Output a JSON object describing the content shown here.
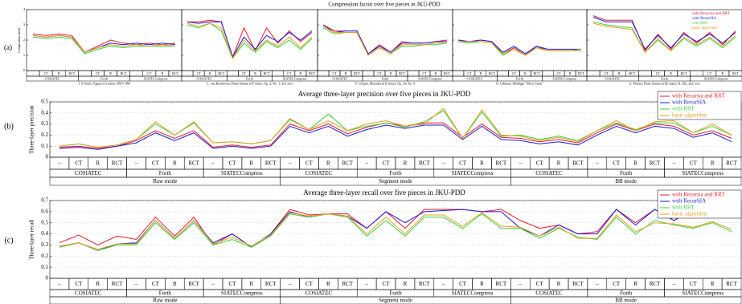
{
  "chart_data": [
    {
      "type": "line",
      "label": "(a)",
      "title": "Compression factor over five pieces in JKU-PDD",
      "ylabel": "Compression factor",
      "ylim": [
        0,
        4
      ],
      "yticks": [
        0,
        1,
        2,
        3,
        4
      ],
      "grid": false,
      "legend": "upper right",
      "variants": [
        "–",
        "CT",
        "R",
        "RCT"
      ],
      "groups": [
        "COSIATEC",
        "Forth",
        "SIATECCompress"
      ],
      "series": [
        {
          "name": "with Recursia and RRT",
          "color": "#e8192c"
        },
        {
          "name": "with RecurSIA",
          "color": "#1a1ad6"
        },
        {
          "name": "with RRT",
          "color": "#3ed13e"
        },
        {
          "name": "basic algorithm",
          "color": "#e8a020"
        }
      ],
      "pieces": [
        {
          "name": "J. S. Bach, Fugue in A minor, BWV 889",
          "series": [
            {
              "values": [
                2.4,
                2.3,
                2.4,
                2.3,
                1.2,
                1.6,
                2.0,
                1.8,
                1.7,
                1.8,
                1.7,
                1.8
              ]
            },
            {
              "values": [
                2.3,
                2.2,
                2.3,
                2.2,
                1.2,
                1.5,
                1.8,
                1.7,
                1.8,
                1.7,
                1.8,
                1.7
              ]
            },
            {
              "values": [
                2.2,
                2.1,
                2.2,
                2.1,
                1.1,
                1.4,
                1.6,
                1.5,
                1.6,
                1.6,
                1.6,
                1.6
              ]
            },
            {
              "values": [
                2.3,
                2.2,
                2.3,
                2.2,
                1.2,
                1.5,
                1.7,
                1.6,
                1.7,
                1.6,
                1.7,
                1.6
              ]
            }
          ]
        },
        {
          "name": "L. van Beethoven, Piano Sonata in F minor, Op. 2, No. 1, 3rd. mvt",
          "series": [
            {
              "values": [
                3.2,
                3.2,
                3.3,
                3.2,
                0.9,
                2.8,
                1.3,
                2.8,
                1.8,
                2.6,
                1.9,
                2.5
              ]
            },
            {
              "values": [
                3.2,
                3.1,
                3.2,
                3.2,
                0.9,
                2.2,
                1.4,
                2.3,
                1.9,
                2.5,
                2.0,
                2.6
              ]
            },
            {
              "values": [
                3.0,
                2.8,
                3.1,
                2.6,
                0.8,
                1.8,
                1.2,
                1.9,
                1.5,
                2.0,
                1.4,
                2.1
              ]
            },
            {
              "values": [
                3.1,
                2.9,
                3.1,
                2.8,
                0.8,
                2.0,
                1.3,
                2.0,
                1.6,
                2.2,
                1.5,
                2.2
              ]
            }
          ]
        },
        {
          "name": "F. Chopin, Mazurka in B minor, Op. 24, No. 4",
          "series": [
            {
              "values": [
                3.0,
                2.6,
                2.6,
                2.6,
                1.1,
                1.7,
                1.2,
                1.9,
                1.8,
                1.8,
                1.9,
                2.0
              ]
            },
            {
              "values": [
                3.0,
                2.5,
                2.6,
                2.6,
                1.1,
                1.6,
                1.2,
                1.8,
                1.8,
                1.8,
                1.9,
                1.9
              ]
            },
            {
              "values": [
                2.8,
                2.4,
                2.5,
                2.5,
                1.0,
                1.5,
                1.1,
                1.6,
                1.6,
                1.7,
                1.7,
                1.8
              ]
            },
            {
              "values": [
                2.9,
                2.5,
                2.5,
                2.5,
                1.0,
                1.5,
                1.1,
                1.7,
                1.7,
                1.7,
                1.8,
                1.8
              ]
            }
          ]
        },
        {
          "name": "O. Gibbons, Madrigal \"Silver Swan\"",
          "series": [
            {
              "values": [
                2.0,
                1.9,
                2.0,
                1.9,
                1.1,
                1.5,
                1.0,
                1.6,
                1.3,
                1.3,
                1.3,
                1.4
              ]
            },
            {
              "values": [
                2.0,
                1.9,
                2.0,
                1.9,
                1.2,
                1.6,
                1.1,
                1.6,
                1.4,
                1.4,
                1.4,
                1.4
              ]
            },
            {
              "values": [
                1.9,
                1.8,
                1.9,
                1.8,
                1.0,
                1.4,
                1.0,
                1.5,
                1.3,
                1.3,
                1.3,
                1.3
              ]
            },
            {
              "values": [
                1.9,
                1.9,
                1.9,
                1.8,
                1.1,
                1.4,
                1.0,
                1.5,
                1.3,
                1.3,
                1.3,
                1.4
              ]
            }
          ]
        },
        {
          "name": "A. Mozart, Piano Sonata in Eb major, K. 282, 2nd. mvt",
          "series": [
            {
              "values": [
                3.6,
                3.3,
                3.3,
                3.3,
                1.3,
                2.4,
                1.4,
                2.5,
                1.8,
                2.5,
                1.7,
                2.6
              ]
            },
            {
              "values": [
                3.5,
                3.2,
                3.2,
                3.2,
                1.4,
                2.3,
                1.5,
                2.4,
                1.9,
                2.4,
                1.8,
                2.5
              ]
            },
            {
              "values": [
                3.2,
                3.0,
                2.9,
                2.8,
                1.2,
                2.0,
                1.3,
                2.1,
                1.6,
                2.1,
                1.5,
                2.2
              ]
            },
            {
              "values": [
                3.1,
                2.9,
                2.8,
                2.7,
                1.2,
                2.1,
                1.3,
                2.2,
                1.7,
                2.2,
                1.6,
                2.3
              ]
            }
          ]
        }
      ]
    },
    {
      "type": "line",
      "label": "(b)",
      "title": "Average three-layer precision over five pieces in JKU-PDD",
      "ylabel": "Three-layer precision",
      "ylim": [
        0,
        0.5
      ],
      "yticks": [
        0,
        0.1,
        0.2,
        0.3,
        0.4,
        0.5
      ],
      "grid": true,
      "legend": "upper right",
      "variants": [
        "–",
        "CT",
        "R",
        "RCT"
      ],
      "groups": [
        "COSIATEC",
        "Forth",
        "SIATECCompress"
      ],
      "modes": [
        "Raw mode",
        "Segment mode",
        "BB mode"
      ],
      "series": [
        {
          "name": "with Recursia and RRT",
          "color": "#e8192c",
          "values": [
            0.09,
            0.1,
            0.08,
            0.1,
            0.15,
            0.24,
            0.17,
            0.24,
            0.09,
            0.11,
            0.09,
            0.11,
            0.3,
            0.24,
            0.3,
            0.21,
            0.27,
            0.31,
            0.28,
            0.31,
            0.31,
            0.18,
            0.3,
            0.18,
            0.17,
            0.14,
            0.16,
            0.13,
            0.22,
            0.3,
            0.24,
            0.3,
            0.28,
            0.2,
            0.24,
            0.17
          ]
        },
        {
          "name": "with RecurSIA",
          "color": "#1a1ad6",
          "values": [
            0.08,
            0.09,
            0.07,
            0.1,
            0.13,
            0.22,
            0.15,
            0.22,
            0.08,
            0.1,
            0.08,
            0.1,
            0.28,
            0.22,
            0.28,
            0.19,
            0.25,
            0.29,
            0.26,
            0.29,
            0.29,
            0.16,
            0.28,
            0.16,
            0.15,
            0.12,
            0.14,
            0.11,
            0.2,
            0.28,
            0.22,
            0.28,
            0.26,
            0.18,
            0.22,
            0.14
          ]
        },
        {
          "name": "with RRT",
          "color": "#3ed13e",
          "values": [
            0.1,
            0.12,
            0.09,
            0.11,
            0.16,
            0.3,
            0.2,
            0.31,
            0.13,
            0.14,
            0.12,
            0.15,
            0.34,
            0.25,
            0.39,
            0.24,
            0.28,
            0.31,
            0.27,
            0.32,
            0.42,
            0.17,
            0.41,
            0.19,
            0.2,
            0.16,
            0.19,
            0.15,
            0.24,
            0.31,
            0.25,
            0.31,
            0.31,
            0.22,
            0.28,
            0.2
          ]
        },
        {
          "name": "basic algorithm",
          "color": "#e8a020",
          "values": [
            0.1,
            0.12,
            0.09,
            0.11,
            0.16,
            0.32,
            0.2,
            0.32,
            0.13,
            0.14,
            0.12,
            0.15,
            0.35,
            0.25,
            0.33,
            0.24,
            0.3,
            0.33,
            0.28,
            0.3,
            0.44,
            0.17,
            0.43,
            0.2,
            0.19,
            0.15,
            0.18,
            0.14,
            0.24,
            0.33,
            0.24,
            0.32,
            0.33,
            0.22,
            0.3,
            0.2
          ]
        }
      ]
    },
    {
      "type": "line",
      "label": "(c)",
      "title": "Average three-layer recall over five pieces in JKU-PDD",
      "ylabel": "Three-layer recall",
      "ylim": [
        0,
        0.7
      ],
      "yticks": [
        0,
        0.1,
        0.2,
        0.3,
        0.4,
        0.5,
        0.6,
        0.7
      ],
      "grid": true,
      "legend": "upper right",
      "variants": [
        "–",
        "CT",
        "R",
        "RCT"
      ],
      "groups": [
        "COSIATEC",
        "Forth",
        "SIATECCompress"
      ],
      "modes": [
        "Raw mode",
        "Segment mode",
        "BB mode"
      ],
      "series": [
        {
          "name": "with Recursia and RRT",
          "color": "#e8192c",
          "values": [
            0.32,
            0.39,
            0.3,
            0.38,
            0.35,
            0.55,
            0.38,
            0.55,
            0.3,
            0.4,
            0.28,
            0.4,
            0.62,
            0.57,
            0.58,
            0.58,
            0.45,
            0.6,
            0.45,
            0.62,
            0.62,
            0.62,
            0.6,
            0.62,
            0.52,
            0.45,
            0.48,
            0.4,
            0.42,
            0.62,
            0.5,
            0.62,
            0.52,
            0.62,
            0.55,
            0.62
          ]
        },
        {
          "name": "with RecurSIA",
          "color": "#1a1ad6",
          "values": [
            0.28,
            0.32,
            0.25,
            0.31,
            0.32,
            0.52,
            0.36,
            0.52,
            0.32,
            0.4,
            0.28,
            0.4,
            0.6,
            0.55,
            0.58,
            0.56,
            0.45,
            0.6,
            0.5,
            0.6,
            0.61,
            0.62,
            0.6,
            0.6,
            0.45,
            0.38,
            0.48,
            0.4,
            0.4,
            0.62,
            0.48,
            0.62,
            0.52,
            0.63,
            0.55,
            0.63
          ]
        },
        {
          "name": "with RRT",
          "color": "#3ed13e",
          "values": [
            0.28,
            0.32,
            0.25,
            0.3,
            0.3,
            0.5,
            0.35,
            0.5,
            0.3,
            0.35,
            0.28,
            0.38,
            0.58,
            0.55,
            0.58,
            0.55,
            0.38,
            0.52,
            0.38,
            0.55,
            0.55,
            0.45,
            0.58,
            0.45,
            0.45,
            0.36,
            0.45,
            0.37,
            0.35,
            0.55,
            0.4,
            0.52,
            0.48,
            0.45,
            0.5,
            0.42
          ]
        },
        {
          "name": "basic algorithm",
          "color": "#e8a020",
          "values": [
            0.29,
            0.32,
            0.26,
            0.31,
            0.31,
            0.52,
            0.36,
            0.52,
            0.31,
            0.37,
            0.29,
            0.39,
            0.59,
            0.56,
            0.58,
            0.56,
            0.4,
            0.55,
            0.4,
            0.57,
            0.57,
            0.47,
            0.59,
            0.47,
            0.46,
            0.38,
            0.46,
            0.36,
            0.36,
            0.57,
            0.42,
            0.5,
            0.49,
            0.46,
            0.51,
            0.44
          ]
        }
      ]
    }
  ]
}
